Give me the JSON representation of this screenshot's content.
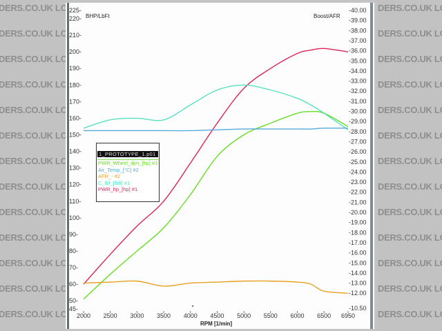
{
  "watermark": {
    "text": "LOCOSTBUILDERS.CO.UK",
    "left_rows": [
      "DERS.CO.UK  LOCOSTE",
      "DERS.CO.UK  LOCOSTE",
      "DERS.CO.UK  LOCOSTE",
      "DERS.CO.UK  LOCOSTE",
      "DERS.CO.UK  LOCOSTE",
      "DERS.CO.UK  LOCOSTE",
      "DERS.CO.UK  LOCOSTE",
      "DERS.CO.UK  LOCOSTE",
      "DERS.CO.UK  LOCOSTE",
      "DERS.CO.UK  LOCOSTE",
      "DERS.CO.UK  LOCOSTE",
      "DERS.CO.UK  LOCOSTE",
      "DERS.CO.UK  LOCOSTE"
    ],
    "right_rows": [
      "DERS.CO.UK  LOCOST",
      "DERS.CO.UK  LOCOST",
      "DERS.CO.UK  LOCOST",
      "DERS.CO.UK  LOCOST",
      "DERS.CO.UK  LOCOST",
      "DERS.CO.UK  LOCOST",
      "DERS.CO.UK  LOCOST",
      "DERS.CO.UK  LOCOST",
      "DERS.CO.UK  LOCOST",
      "DERS.CO.UK  LOCOST",
      "DERS.CO.UK  LOCOST",
      "DERS.CO.UK  LOCOST",
      "DERS.CO.UK  LOCOST"
    ]
  },
  "legend": {
    "title": "1_PROTOTYPE_1.p01",
    "items": [
      {
        "label": "PWR_Wheel_dyn_[hp] #1",
        "color": "#66dd22"
      },
      {
        "label": "Air_Temp_[°C] #2",
        "color": "#55aadd"
      },
      {
        "label": "AFR_- #2",
        "color": "#e8a020"
      },
      {
        "label": "C_lbf_[lbft] #1",
        "color": "#55e0c0"
      },
      {
        "label": "PWR_hp_[hp] #1",
        "color": "#dd2255"
      }
    ]
  },
  "chart_data": {
    "type": "line",
    "title": "",
    "xlabel": "RPM  [1/min]",
    "ylabel_left": "BHP/LbFt",
    "ylabel_right": "Boost/AFR",
    "xlim": [
      2000,
      6950
    ],
    "ylim_left": [
      45,
      225
    ],
    "ylim_right": [
      10.5,
      40.0
    ],
    "x_ticks": [
      2000,
      2500,
      3000,
      3500,
      4000,
      4500,
      5000,
      5500,
      6000,
      6500,
      6950
    ],
    "y_ticks_left": [
      225,
      220,
      210,
      200,
      190,
      180,
      170,
      160,
      150,
      140,
      130,
      120,
      110,
      100,
      90,
      80,
      70,
      60,
      50,
      45
    ],
    "y_ticks_right": [
      "40.00",
      "39.00",
      "38.00",
      "37.00",
      "36.00",
      "35.00",
      "34.00",
      "33.00",
      "32.00",
      "31.00",
      "30.00",
      "29.00",
      "28.00",
      "27.00",
      "26.00",
      "25.00",
      "24.00",
      "23.00",
      "22.00",
      "21.00",
      "20.00",
      "19.00",
      "18.00",
      "17.00",
      "16.00",
      "15.00",
      "14.00",
      "13.00",
      "12.00",
      "10.50"
    ],
    "grid": false,
    "legend_position": "inside-left-middle",
    "x": [
      2000,
      2500,
      3000,
      3500,
      4000,
      4500,
      5000,
      5500,
      6000,
      6250,
      6500,
      6950
    ],
    "series": [
      {
        "name": "PWR_hp_[hp] #1",
        "axis": "left",
        "color": "#dd2255",
        "values": [
          60,
          78,
          95,
          110,
          133,
          157,
          178,
          190,
          199,
          201,
          202,
          200
        ]
      },
      {
        "name": "PWR_Wheel_dyn_[hp] #1",
        "axis": "left",
        "color": "#66dd22",
        "values": [
          51,
          66,
          80,
          94,
          114,
          137,
          150,
          157,
          163,
          164,
          163,
          155
        ]
      },
      {
        "name": "C_lbf_[lbft] #1",
        "axis": "left",
        "color": "#55e0c0",
        "values": [
          154,
          159,
          160,
          159,
          168,
          177,
          180,
          177,
          172,
          168,
          163,
          153
        ]
      },
      {
        "name": "Air_Temp_[°C] #2",
        "axis": "left",
        "color": "#55aadd",
        "values": [
          152.5,
          152.5,
          152.5,
          152.5,
          152.5,
          153,
          153.5,
          153.5,
          153.5,
          153.5,
          154,
          154
        ]
      },
      {
        "name": "AFR_- #2",
        "axis": "right",
        "color": "#e8a020",
        "values": [
          13.0,
          13.1,
          13.2,
          12.7,
          13.0,
          13.1,
          13.2,
          13.2,
          13.1,
          12.9,
          12.2,
          12.0
        ]
      }
    ]
  }
}
